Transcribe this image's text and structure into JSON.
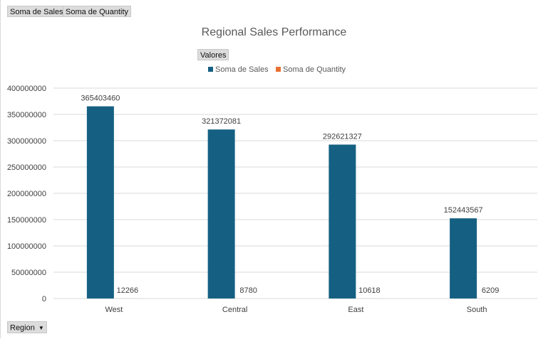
{
  "pivot_buttons": {
    "sales_field": "Soma de Sales",
    "quantity_field": "Soma de Quantity",
    "values_field": "Valores",
    "axis_field": "Region"
  },
  "chart_data": {
    "type": "bar",
    "title": "Regional Sales Performance",
    "categories": [
      "West",
      "Central",
      "East",
      "South"
    ],
    "series": [
      {
        "name": "Soma de Sales",
        "values": [
          365403460,
          321372081,
          292621327,
          152443567
        ],
        "color": "#156082"
      },
      {
        "name": "Soma de Quantity",
        "values": [
          12266,
          8780,
          10618,
          6209
        ],
        "color": "#E97132"
      }
    ],
    "ylim": [
      0,
      400000000
    ],
    "yticks": [
      0,
      50000000,
      100000000,
      150000000,
      200000000,
      250000000,
      300000000,
      350000000,
      400000000
    ],
    "grid": true,
    "legend_position": "top"
  }
}
